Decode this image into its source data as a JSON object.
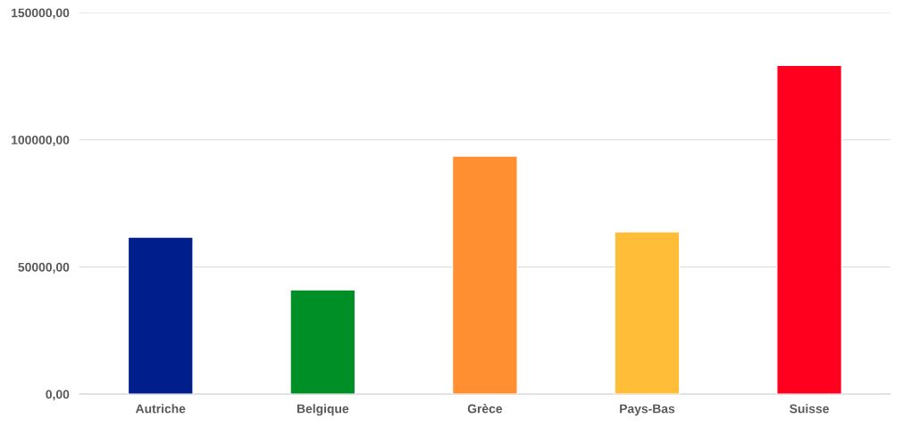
{
  "chart_data": {
    "type": "bar",
    "categories": [
      "Autriche",
      "Belgique",
      "Grèce",
      "Pays-Bas",
      "Suisse"
    ],
    "values": [
      61700,
      41000,
      93600,
      63800,
      129300
    ],
    "colors": [
      "#001f8c",
      "#008f26",
      "#ff8f30",
      "#ffbd38",
      "#ff001e"
    ],
    "ylim": [
      0,
      150000
    ],
    "yticks": [
      {
        "value": 0,
        "label": "0,00"
      },
      {
        "value": 50000,
        "label": "50000,00"
      },
      {
        "value": 100000,
        "label": "100000,00"
      },
      {
        "value": 150000,
        "label": "150000,00"
      }
    ],
    "grid": "y",
    "legend": false
  }
}
